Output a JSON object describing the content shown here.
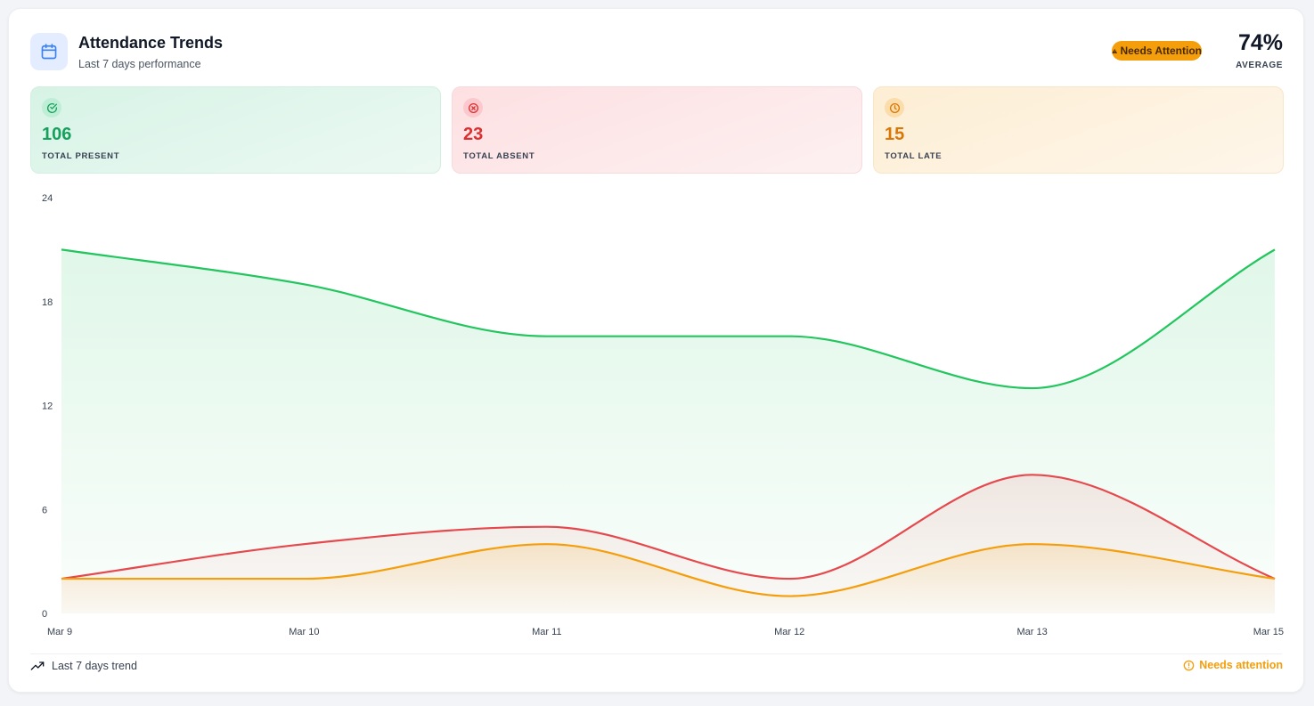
{
  "header": {
    "title": "Attendance Trends",
    "subtitle": "Last 7 days performance",
    "badge": "Needs Attention",
    "average_value": "74%",
    "average_label": "AVERAGE",
    "icon": "calendar-icon"
  },
  "stats": {
    "present": {
      "value": "106",
      "label": "TOTAL PRESENT",
      "icon": "check-circle-icon",
      "color": "#16a05c"
    },
    "absent": {
      "value": "23",
      "label": "TOTAL ABSENT",
      "icon": "x-circle-icon",
      "color": "#dc2f2f"
    },
    "late": {
      "value": "15",
      "label": "TOTAL LATE",
      "icon": "clock-icon",
      "color": "#d97706"
    }
  },
  "chart_data": {
    "type": "area",
    "categories": [
      "Mar 9",
      "Mar 10",
      "Mar 11",
      "Mar 12",
      "Mar 13",
      "Mar 15"
    ],
    "series": [
      {
        "key": "present",
        "values": [
          21,
          19,
          16,
          16,
          13,
          21
        ],
        "color": "#22c55e"
      },
      {
        "key": "absent",
        "values": [
          2,
          4,
          5,
          2,
          8,
          2
        ],
        "color": "#e5484d"
      },
      {
        "key": "late",
        "values": [
          2,
          2,
          4,
          1,
          4,
          2
        ],
        "color": "#f59e0b"
      }
    ],
    "y_ticks": [
      "0",
      "6",
      "12",
      "18",
      "24"
    ],
    "ylim": [
      0,
      24
    ],
    "grid": false
  },
  "footer": {
    "trend_label": "Last 7 days trend",
    "status_label": "Needs attention"
  }
}
